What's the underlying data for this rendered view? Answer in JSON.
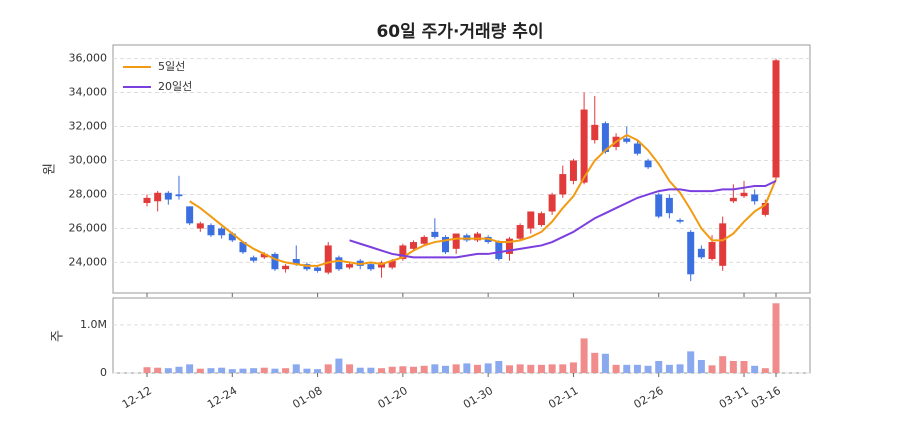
{
  "chart_data": [
    {
      "type": "candlestick",
      "title": "60일 주가·거래량 추이",
      "y_label": "원",
      "up_color": "#e03a3a",
      "down_color": "#3b6fe0",
      "open": [
        27500,
        27600,
        28100,
        28000,
        27300,
        26000,
        26200,
        26000,
        25700,
        25200,
        24300,
        24300,
        24500,
        23600,
        24200,
        23900,
        23700,
        23400,
        24300,
        23700,
        24100,
        23900,
        23700,
        23700,
        24200,
        24800,
        25100,
        25800,
        25500,
        24800,
        25600,
        25300,
        25500,
        25200,
        24500,
        25400,
        26000,
        26200,
        27000,
        28000,
        28800,
        28700,
        31200,
        32200,
        30800,
        31300,
        31000,
        30000,
        28000,
        27800,
        26500,
        25800,
        24800,
        24200,
        23800,
        27600,
        27900,
        28000,
        26800,
        29000
      ],
      "high": [
        28000,
        28200,
        28200,
        29100,
        27300,
        26400,
        26300,
        26100,
        25800,
        25200,
        24400,
        24600,
        24600,
        23900,
        25000,
        24000,
        23800,
        25200,
        24400,
        24000,
        24200,
        24000,
        24100,
        24200,
        25100,
        25300,
        25600,
        26600,
        25600,
        25700,
        25700,
        25800,
        25600,
        25300,
        25500,
        26300,
        27000,
        27000,
        28100,
        29700,
        30100,
        34000,
        33800,
        32300,
        31600,
        32000,
        31200,
        30100,
        28100,
        28000,
        26600,
        25900,
        25000,
        25600,
        26700,
        28600,
        28800,
        28300,
        27700,
        36000
      ],
      "low": [
        27300,
        27000,
        27400,
        27700,
        26200,
        25800,
        25500,
        25400,
        25200,
        24500,
        24000,
        24200,
        23500,
        23400,
        23800,
        23500,
        23400,
        23300,
        23500,
        23600,
        23600,
        23500,
        23100,
        23600,
        24100,
        24700,
        25000,
        25400,
        24500,
        24500,
        25200,
        25200,
        25100,
        24100,
        24100,
        25300,
        25700,
        26100,
        26800,
        27800,
        28600,
        28600,
        31000,
        30400,
        30600,
        31000,
        30300,
        29500,
        26600,
        26600,
        26300,
        22900,
        24200,
        24100,
        23500,
        27500,
        27800,
        27400,
        26700,
        28900
      ],
      "close": [
        27800,
        28100,
        27700,
        27900,
        26300,
        26300,
        25600,
        25600,
        25300,
        24600,
        24100,
        24500,
        23600,
        23800,
        23900,
        23600,
        23500,
        25000,
        23600,
        23900,
        23800,
        23600,
        24000,
        24100,
        25000,
        25200,
        25500,
        25500,
        24600,
        25700,
        25300,
        25700,
        25200,
        24200,
        25400,
        26200,
        27000,
        26900,
        28000,
        29200,
        30000,
        33000,
        32100,
        30500,
        31400,
        31100,
        30400,
        29600,
        26700,
        26900,
        26400,
        23300,
        24300,
        25200,
        26300,
        27800,
        28100,
        27600,
        27500,
        35900
      ],
      "series": [
        {
          "name": "5일선",
          "color": "#f29b12",
          "values": [
            null,
            null,
            null,
            null,
            27600,
            27200,
            26700,
            26200,
            25700,
            25200,
            24800,
            24500,
            24200,
            24000,
            23900,
            23800,
            23800,
            24000,
            24100,
            24000,
            23900,
            24000,
            23900,
            24100,
            24300,
            24700,
            25000,
            25200,
            25300,
            25400,
            25400,
            25400,
            25400,
            25200,
            25200,
            25300,
            25500,
            25800,
            26400,
            27200,
            27900,
            29000,
            30000,
            30600,
            31100,
            31500,
            31200,
            30600,
            29800,
            28800,
            28100,
            27100,
            26000,
            25300,
            25300,
            25700,
            26400,
            27000,
            27400,
            28900
          ]
        },
        {
          "name": "20일선",
          "color": "#7b3fe0",
          "values": [
            null,
            null,
            null,
            null,
            null,
            null,
            null,
            null,
            null,
            null,
            null,
            null,
            null,
            null,
            null,
            null,
            null,
            null,
            null,
            25300,
            25100,
            24900,
            24700,
            24500,
            24400,
            24300,
            24300,
            24300,
            24300,
            24300,
            24400,
            24500,
            24500,
            24600,
            24700,
            24800,
            24900,
            25000,
            25200,
            25500,
            25800,
            26200,
            26600,
            26900,
            27200,
            27500,
            27800,
            28000,
            28200,
            28300,
            28300,
            28200,
            28200,
            28200,
            28300,
            28300,
            28400,
            28500,
            28500,
            28800
          ]
        }
      ],
      "legend": "upper left",
      "grid": true,
      "ylim": [
        22200,
        36800
      ],
      "yticks": [
        {
          "value": 24000,
          "label": "24,000"
        },
        {
          "value": 26000,
          "label": "26,000"
        },
        {
          "value": 28000,
          "label": "28,000"
        },
        {
          "value": 30000,
          "label": "30,000"
        },
        {
          "value": 32000,
          "label": "32,000"
        },
        {
          "value": 34000,
          "label": "34,000"
        },
        {
          "value": 36000,
          "label": "36,000"
        }
      ]
    },
    {
      "type": "bar",
      "y_label": "주",
      "up_color": "#f08c8c",
      "down_color": "#8aa9ef",
      "grid": true,
      "categories": [
        "12-12",
        null,
        null,
        null,
        null,
        null,
        null,
        null,
        "12-24",
        null,
        null,
        null,
        null,
        null,
        null,
        null,
        "01-08",
        null,
        null,
        null,
        null,
        null,
        null,
        null,
        "01-20",
        null,
        null,
        null,
        null,
        null,
        null,
        null,
        "01-30",
        null,
        null,
        null,
        null,
        null,
        null,
        null,
        "02-11",
        null,
        null,
        null,
        null,
        null,
        null,
        null,
        "02-26",
        null,
        null,
        null,
        null,
        null,
        null,
        null,
        "03-11",
        null,
        null,
        "03-16"
      ],
      "values": [
        120000,
        110000,
        100000,
        130000,
        180000,
        90000,
        100000,
        110000,
        80000,
        90000,
        100000,
        110000,
        90000,
        100000,
        180000,
        90000,
        80000,
        180000,
        300000,
        180000,
        110000,
        110000,
        100000,
        130000,
        140000,
        130000,
        150000,
        180000,
        150000,
        180000,
        200000,
        170000,
        200000,
        250000,
        160000,
        180000,
        170000,
        170000,
        180000,
        180000,
        220000,
        720000,
        420000,
        400000,
        170000,
        170000,
        170000,
        150000,
        250000,
        170000,
        180000,
        450000,
        270000,
        160000,
        350000,
        250000,
        250000,
        150000,
        100000,
        1450000
      ],
      "ylim": [
        0,
        1560000
      ],
      "yticks": [
        0,
        {
          "value": 1000000,
          "label": "1.0M"
        }
      ]
    }
  ]
}
